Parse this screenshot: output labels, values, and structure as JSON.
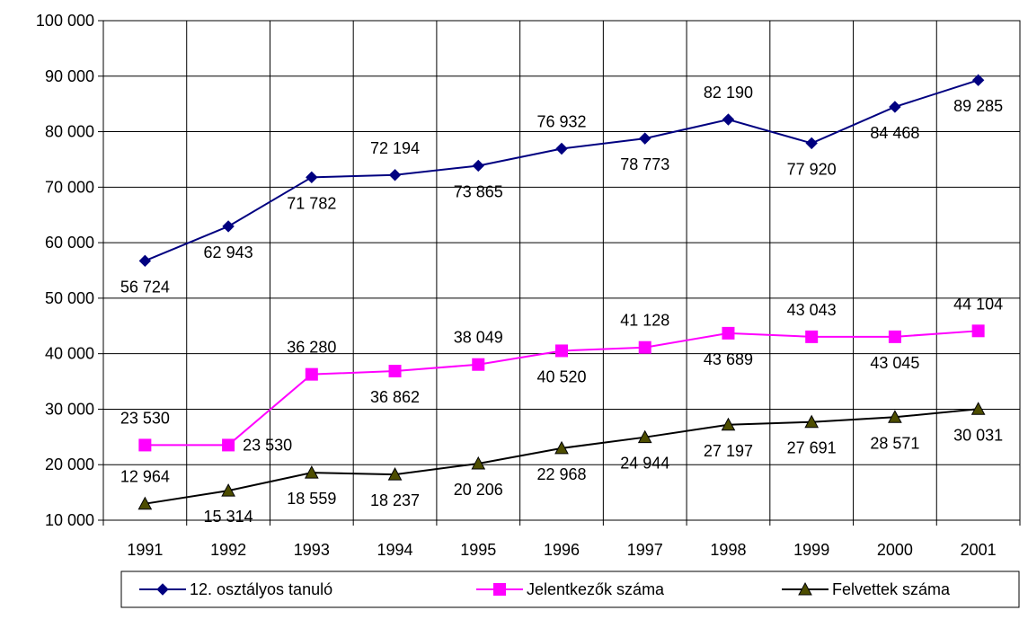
{
  "chart_data": {
    "type": "line",
    "categories": [
      "1991",
      "1992",
      "1993",
      "1994",
      "1995",
      "1996",
      "1997",
      "1998",
      "1999",
      "2000",
      "2001"
    ],
    "ylim": [
      10000,
      100000
    ],
    "yticks": [
      10000,
      20000,
      30000,
      40000,
      50000,
      60000,
      70000,
      80000,
      90000,
      100000
    ],
    "ytick_labels": [
      "10 000",
      "20 000",
      "30 000",
      "40 000",
      "50 000",
      "60 000",
      "70 000",
      "80 000",
      "90 000",
      "100 000"
    ],
    "grid": true,
    "legend_position": "bottom",
    "series": [
      {
        "name": "12. osztályos tanuló",
        "color": "#000080",
        "marker": "diamond",
        "values": [
          56724,
          62943,
          71782,
          72194,
          73865,
          76932,
          78773,
          82190,
          77920,
          84468,
          89285
        ],
        "labels": [
          "56 724",
          "62 943",
          "71 782",
          "72 194",
          "73 865",
          "76 932",
          "78 773",
          "82 190",
          "77 920",
          "84 468",
          "89 285"
        ],
        "label_pos": [
          "below",
          "below",
          "below",
          "above",
          "below",
          "above",
          "below",
          "above",
          "below",
          "below",
          "below"
        ]
      },
      {
        "name": "Jelentkezők száma",
        "color": "#FF00FF",
        "marker": "square",
        "values": [
          23530,
          23530,
          36280,
          36862,
          38049,
          40520,
          41128,
          43689,
          43043,
          43045,
          44104
        ],
        "labels": [
          "23 530",
          "23 530",
          "36 280",
          "36 862",
          "38 049",
          "40 520",
          "41 128",
          "43 689",
          "43 043",
          "43 045",
          "44 104"
        ],
        "label_pos": [
          "above",
          "right",
          "above",
          "below",
          "above",
          "below",
          "above",
          "below",
          "above",
          "below",
          "above"
        ]
      },
      {
        "name": "Felvettek száma",
        "color": "#000000",
        "marker": "triangle",
        "values": [
          12964,
          15314,
          18559,
          18237,
          20206,
          22968,
          24944,
          27197,
          27691,
          28571,
          30031
        ],
        "labels": [
          "12 964",
          "15 314",
          "18 559",
          "18 237",
          "20 206",
          "22 968",
          "24 944",
          "27 197",
          "27 691",
          "28 571",
          "30 031"
        ],
        "label_pos": [
          "above",
          "below",
          "below",
          "below",
          "below",
          "below",
          "below",
          "below",
          "below",
          "below",
          "below"
        ]
      }
    ]
  }
}
